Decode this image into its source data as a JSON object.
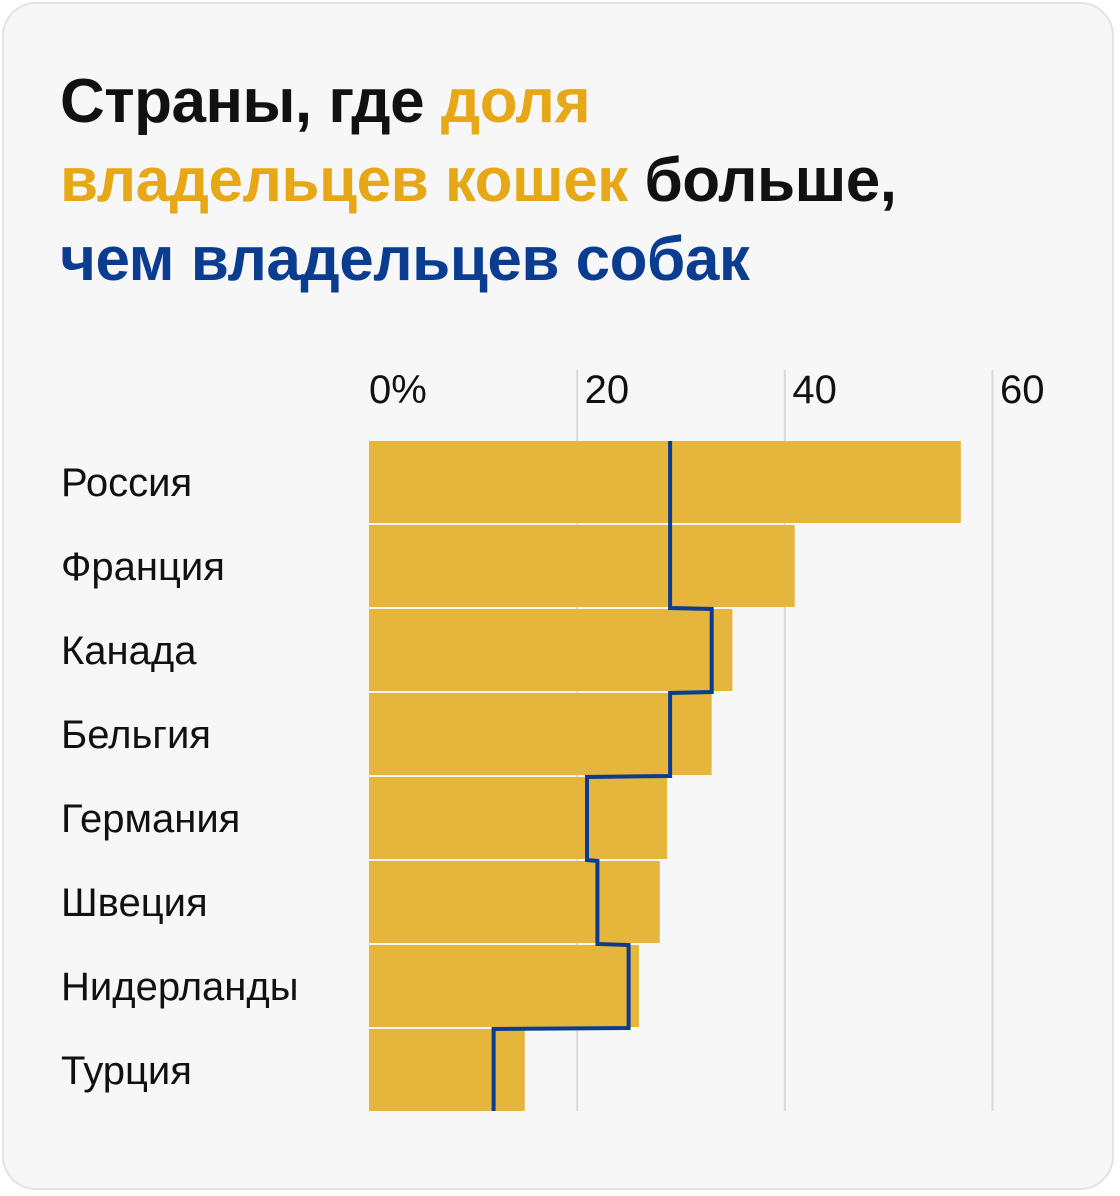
{
  "title": {
    "line1": {
      "part1": "Страны, где ",
      "part2": "доля"
    },
    "line2": {
      "part1": "владельцев кошек",
      "part2": " больше,"
    },
    "line3": {
      "part1": "чем владельцев собак"
    }
  },
  "colors": {
    "cats": "#e6b53c",
    "dogs": "#0a3d8f",
    "text": "#111111",
    "grid": "#d9d9d9",
    "background": "#f7f7f7"
  },
  "chart_data": {
    "type": "bar",
    "orientation": "horizontal",
    "categories": [
      "Россия",
      "Франция",
      "Канада",
      "Бельгия",
      "Германия",
      "Швеция",
      "Нидерланды",
      "Турция"
    ],
    "series": [
      {
        "values": [
          57,
          41,
          35,
          33,
          28.7,
          28,
          26,
          15
        ],
        "style": "bars",
        "color": "#e6b53c"
      },
      {
        "values": [
          29,
          29,
          33,
          29,
          21,
          22,
          25,
          12
        ],
        "style": "step-line",
        "color": "#0a3d8f"
      }
    ],
    "xlim": [
      0,
      60
    ],
    "xticks": [
      0,
      20,
      40,
      60
    ],
    "xtick_labels": [
      "0%",
      "20",
      "40",
      "60"
    ],
    "grid": true,
    "axis_labels_position": "top"
  }
}
